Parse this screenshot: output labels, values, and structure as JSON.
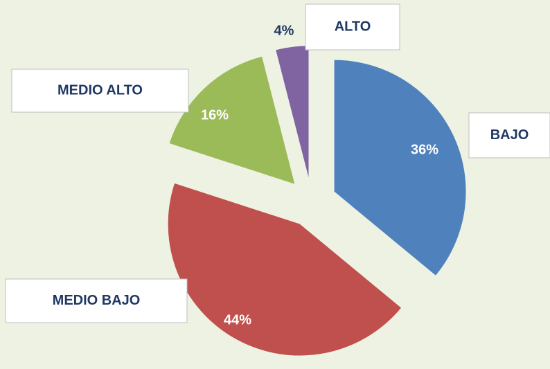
{
  "chart_data": {
    "type": "pie",
    "categories": [
      "BAJO",
      "MEDIO BAJO",
      "MEDIO ALTO",
      "ALTO"
    ],
    "values": [
      36,
      44,
      16,
      4
    ],
    "value_labels": [
      "36%",
      "44%",
      "16%",
      "4%"
    ],
    "colors": [
      "#4f81bd",
      "#c0504d",
      "#9bbb59",
      "#8064a2"
    ]
  }
}
